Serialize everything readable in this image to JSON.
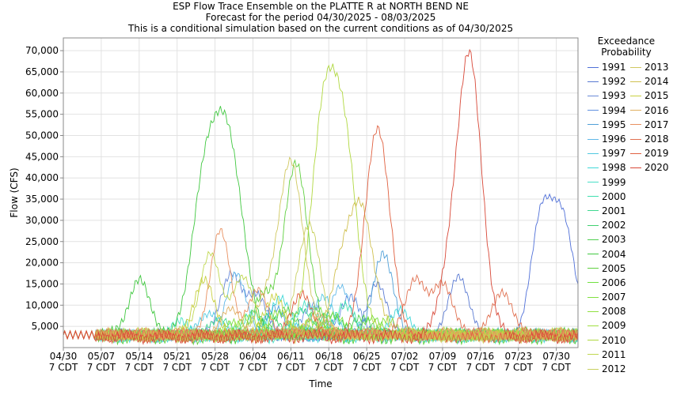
{
  "chart_data": {
    "type": "line",
    "title": "ESP Flow Trace Ensemble on the PLATTE R at NORTH BEND NE",
    "subtitle_1": "Forecast for the period 04/30/2025 - 08/03/2025",
    "subtitle_2": "This is a conditional simulation based on the current conditions as of 04/30/2025",
    "xlabel": "Time",
    "ylabel": "Flow (CFS)",
    "ylim": [
      0,
      73000
    ],
    "y_ticks": [
      "5,000",
      "10,000",
      "15,000",
      "20,000",
      "25,000",
      "30,000",
      "35,000",
      "40,000",
      "45,000",
      "50,000",
      "55,000",
      "60,000",
      "65,000",
      "70,000"
    ],
    "y_tick_values": [
      5000,
      10000,
      15000,
      20000,
      25000,
      30000,
      35000,
      40000,
      45000,
      50000,
      55000,
      60000,
      65000,
      70000
    ],
    "x_ticks": [
      {
        "day": 0,
        "line1": "04/30",
        "line2": "7 CDT"
      },
      {
        "day": 7,
        "line1": "05/07",
        "line2": "7 CDT"
      },
      {
        "day": 14,
        "line1": "05/14",
        "line2": "7 CDT"
      },
      {
        "day": 21,
        "line1": "05/21",
        "line2": "7 CDT"
      },
      {
        "day": 28,
        "line1": "05/28",
        "line2": "7 CDT"
      },
      {
        "day": 35,
        "line1": "06/04",
        "line2": "7 CDT"
      },
      {
        "day": 42,
        "line1": "06/11",
        "line2": "7 CDT"
      },
      {
        "day": 49,
        "line1": "06/18",
        "line2": "7 CDT"
      },
      {
        "day": 56,
        "line1": "06/25",
        "line2": "7 CDT"
      },
      {
        "day": 63,
        "line1": "07/02",
        "line2": "7 CDT"
      },
      {
        "day": 70,
        "line1": "07/09",
        "line2": "7 CDT"
      },
      {
        "day": 77,
        "line1": "07/16",
        "line2": "7 CDT"
      },
      {
        "day": 84,
        "line1": "07/23",
        "line2": "7 CDT"
      },
      {
        "day": 91,
        "line1": "07/30",
        "line2": "7 CDT"
      }
    ],
    "x_range_days": [
      0,
      95
    ],
    "grid": true,
    "legend_title_1": "Exceedance",
    "legend_title_2": "Probability",
    "legend_position": "right",
    "series": [
      {
        "name": "1991",
        "color": "#5070d8",
        "peaks": [
          [
            88,
            27000
          ],
          [
            92,
            31000
          ]
        ]
      },
      {
        "name": "1992",
        "color": "#5a7ad2",
        "peaks": [
          [
            73,
            17000
          ],
          [
            58,
            15000
          ]
        ]
      },
      {
        "name": "1993",
        "color": "#6a8ad8",
        "peaks": [
          [
            31,
            18000
          ],
          [
            36,
            12000
          ]
        ]
      },
      {
        "name": "1994",
        "color": "#6090e0",
        "peaks": [
          [
            46,
            10000
          ],
          [
            53,
            12000
          ]
        ]
      },
      {
        "name": "1995",
        "color": "#50a0d8",
        "peaks": [
          [
            59,
            22000
          ],
          [
            39,
            9000
          ]
        ]
      },
      {
        "name": "1996",
        "color": "#60b8e8",
        "peaks": [
          [
            32,
            17000
          ],
          [
            51,
            14000
          ]
        ]
      },
      {
        "name": "1997",
        "color": "#50c8e0",
        "peaks": [
          [
            48,
            12000
          ],
          [
            27,
            8000
          ]
        ]
      },
      {
        "name": "1998",
        "color": "#40d8d8",
        "peaks": [
          [
            40,
            12000
          ],
          [
            62,
            9000
          ]
        ]
      },
      {
        "name": "1999",
        "color": "#48e0c8",
        "peaks": [
          [
            45,
            11000
          ],
          [
            22,
            6000
          ]
        ]
      },
      {
        "name": "2000",
        "color": "#40e0b0",
        "peaks": [
          [
            52,
            10000
          ],
          [
            35,
            8000
          ]
        ]
      },
      {
        "name": "2001",
        "color": "#40d890",
        "peaks": [
          [
            44,
            9000
          ],
          [
            29,
            7000
          ]
        ]
      },
      {
        "name": "2002",
        "color": "#40d070",
        "peaks": [
          [
            49,
            8500
          ],
          [
            38,
            7000
          ]
        ]
      },
      {
        "name": "2003",
        "color": "#50d050",
        "peaks": [
          [
            41,
            9000
          ],
          [
            55,
            7000
          ]
        ]
      },
      {
        "name": "2004",
        "color": "#40c840",
        "peaks": [
          [
            14,
            16000
          ],
          [
            26,
            38000
          ],
          [
            30,
            44000
          ],
          [
            33,
            15000
          ]
        ]
      },
      {
        "name": "2005",
        "color": "#60d040",
        "peaks": [
          [
            43,
            43000
          ],
          [
            37,
            12000
          ]
        ]
      },
      {
        "name": "2006",
        "color": "#70e040",
        "peaks": [
          [
            47,
            9000
          ],
          [
            57,
            7000
          ]
        ]
      },
      {
        "name": "2007",
        "color": "#80e040",
        "peaks": [
          [
            50,
            8000
          ],
          [
            31,
            6000
          ]
        ]
      },
      {
        "name": "2008",
        "color": "#90e040",
        "peaks": [
          [
            40,
            8000
          ],
          [
            60,
            6000
          ]
        ]
      },
      {
        "name": "2009",
        "color": "#a0e040",
        "peaks": [
          [
            34,
            7000
          ],
          [
            46,
            6000
          ]
        ]
      },
      {
        "name": "2010",
        "color": "#b0d840",
        "peaks": [
          [
            48,
            53000
          ],
          [
            52,
            45000
          ]
        ]
      },
      {
        "name": "2011",
        "color": "#c0d850",
        "peaks": [
          [
            27,
            22000
          ],
          [
            33,
            17000
          ]
        ]
      },
      {
        "name": "2012",
        "color": "#c8d060",
        "peaks": [
          [
            46,
            22000
          ],
          [
            44,
            13000
          ]
        ]
      },
      {
        "name": "2013",
        "color": "#d0c860",
        "peaks": [
          [
            42,
            44000
          ],
          [
            37,
            10000
          ]
        ]
      },
      {
        "name": "2014",
        "color": "#d0c050",
        "peaks": [
          [
            55,
            33000
          ],
          [
            51,
            16000
          ]
        ]
      },
      {
        "name": "2015",
        "color": "#c8d040",
        "peaks": [
          [
            26,
            16000
          ],
          [
            39,
            12000
          ]
        ]
      },
      {
        "name": "2016",
        "color": "#e0b060",
        "peaks": [
          [
            31,
            9000
          ],
          [
            47,
            8000
          ]
        ]
      },
      {
        "name": "2017",
        "color": "#e89060",
        "peaks": [
          [
            29,
            27000
          ],
          [
            36,
            13000
          ]
        ]
      },
      {
        "name": "2018",
        "color": "#e07050",
        "peaks": [
          [
            65,
            16000
          ],
          [
            70,
            15000
          ],
          [
            81,
            13000
          ]
        ]
      },
      {
        "name": "2019",
        "color": "#e06040",
        "peaks": [
          [
            58,
            52000
          ],
          [
            44,
            13000
          ]
        ]
      },
      {
        "name": "2020",
        "color": "#d84838",
        "peaks": [
          [
            75,
            68000
          ],
          [
            71,
            14000
          ]
        ]
      }
    ]
  }
}
